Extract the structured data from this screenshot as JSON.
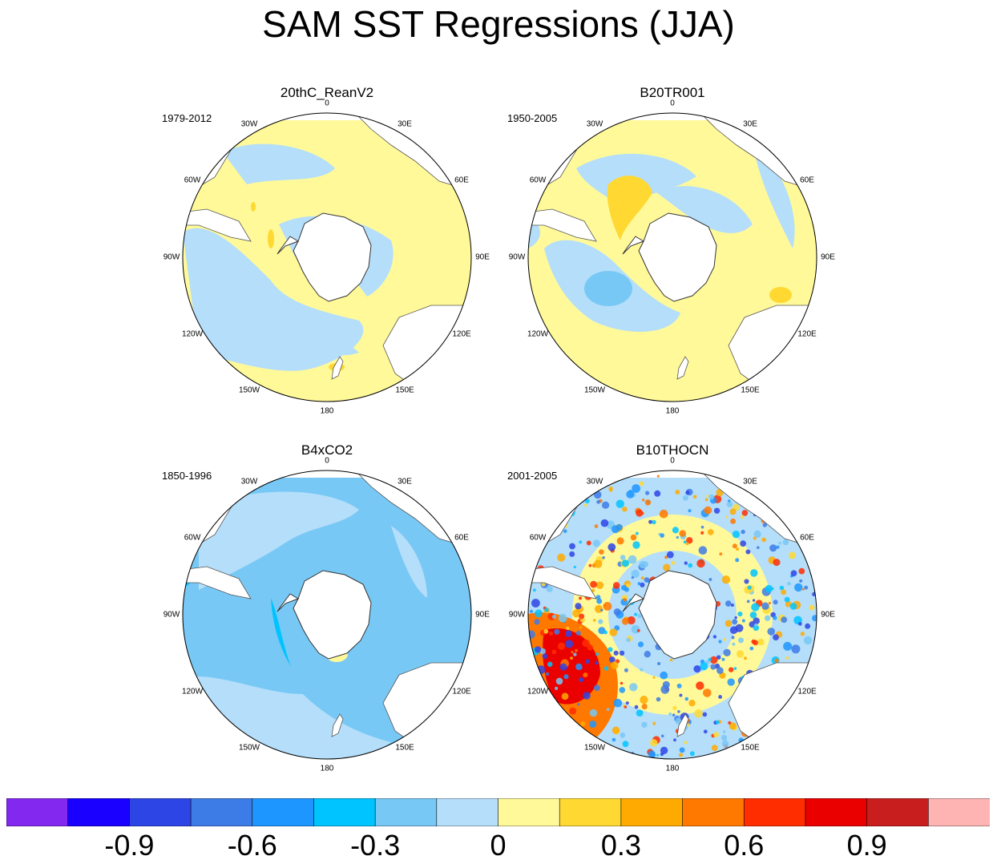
{
  "title": "SAM SST Regressions (JJA)",
  "panels": [
    {
      "title": "20thC_ReanV2",
      "period": "1979-2012",
      "scheme": "rean"
    },
    {
      "title": "B20TR001",
      "period": "1950-2005",
      "scheme": "b20"
    },
    {
      "title": "B4xCO2",
      "period": "1850-1996",
      "scheme": "b4x"
    },
    {
      "title": "B10THOCN",
      "period": "2001-2005",
      "scheme": "b10"
    }
  ],
  "longitude_labels": [
    "0",
    "30E",
    "60E",
    "90E",
    "120E",
    "150E",
    "180",
    "150W",
    "120W",
    "90W",
    "60W",
    "30W"
  ],
  "colorbar": {
    "colors": [
      "#8228ef",
      "#1900ff",
      "#2e45e6",
      "#3d7be6",
      "#1e96ff",
      "#00c4ff",
      "#78c8f5",
      "#b4defa",
      "#fff99a",
      "#ffd932",
      "#ffaa00",
      "#ff7800",
      "#ff2d00",
      "#eb0000",
      "#c81e1e",
      "#ffb4b4"
    ],
    "labels": [
      "-0.9",
      "-0.6",
      "-0.3",
      "0",
      "0.3",
      "0.6",
      "0.9"
    ]
  }
}
